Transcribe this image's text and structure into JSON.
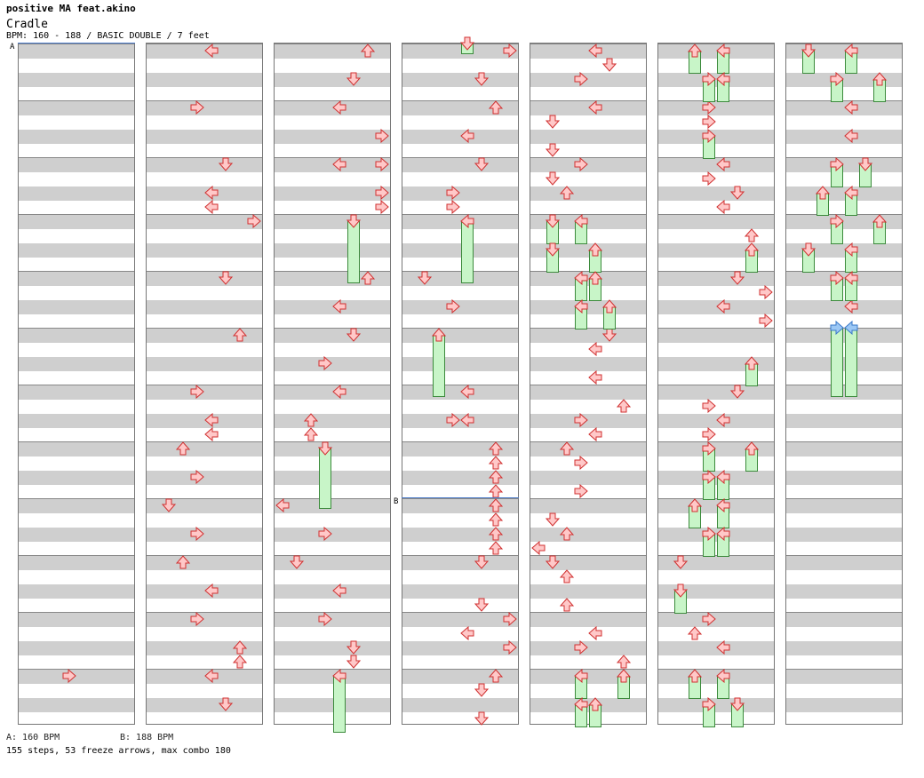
{
  "header": {
    "artist_line": "positive MA feat.akino",
    "song_title": "Cradle",
    "info_line": "BPM: 160 - 188 / BASIC DOUBLE / 7 feet"
  },
  "markers": {
    "a": "A",
    "b": "B"
  },
  "footer": {
    "bpm_a": "A: 160 BPM",
    "bpm_b": "B: 188 BPM",
    "stats": "155 steps, 53 freeze arrows, max combo 180"
  },
  "colors": {
    "arrow_fill": "#ffc8c8",
    "arrow_stroke": "#d03030",
    "freeze_fill": "#c8f5c8",
    "freeze_stroke": "#3c8a3c",
    "freeze_head_blue": "#9cc8f5",
    "band_gray": "#cfcfcf",
    "bpm_line": "#4a79c8"
  },
  "columns": [
    {
      "notes": [
        {
          "l": "right",
          "r": "right",
          "fz": 0
        }
      ]
    },
    {
      "notes": []
    },
    {
      "notes": []
    },
    {
      "notes": []
    },
    {
      "notes": []
    },
    {
      "notes": []
    },
    {
      "notes": []
    }
  ]
}
